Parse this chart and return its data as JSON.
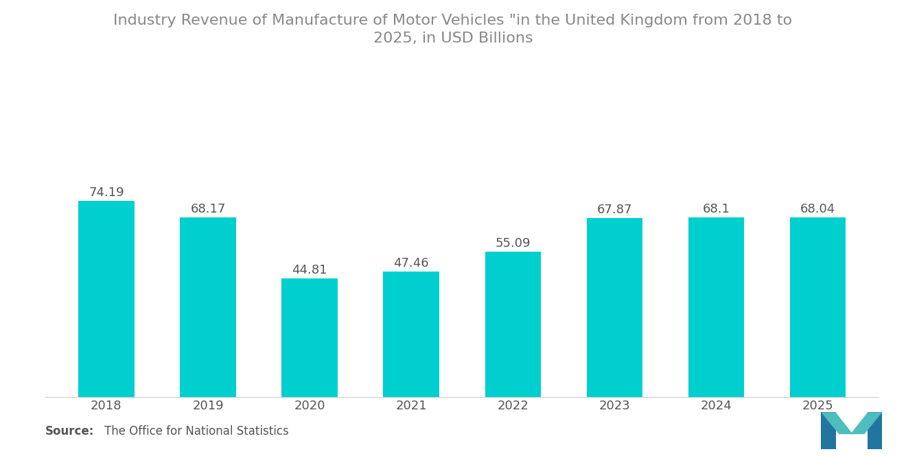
{
  "title_line1": "Industry Revenue of Manufacture of Motor Vehicles \"in the United Kingdom from 2018 to",
  "title_line2": "2025, in USD Billions",
  "categories": [
    "2018",
    "2019",
    "2020",
    "2021",
    "2022",
    "2023",
    "2024",
    "2025"
  ],
  "values": [
    74.19,
    68.17,
    44.81,
    47.46,
    55.09,
    67.87,
    68.1,
    68.04
  ],
  "bar_color": "#00CFCF",
  "background_color": "#FFFFFF",
  "label_color": "#555555",
  "source_bold": "Source:",
  "source_text": "The Office for National Statistics",
  "title_color": "#888888",
  "value_label_color": "#555555",
  "bar_width": 0.55,
  "ylim": [
    0,
    90
  ],
  "title_fontsize": 16,
  "label_fontsize": 13,
  "value_fontsize": 13,
  "source_fontsize": 12
}
